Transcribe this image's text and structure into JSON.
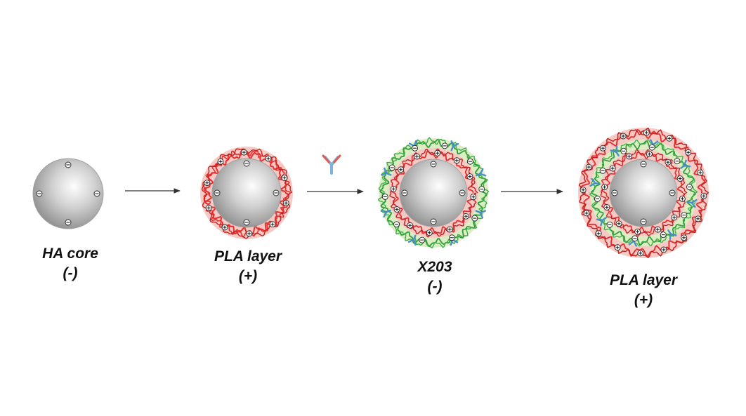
{
  "stages": [
    {
      "title": "HA core",
      "charge": "(-)"
    },
    {
      "title": "PLA layer",
      "charge": "(+)"
    },
    {
      "title": "X203",
      "charge": "(-)"
    },
    {
      "title": "PLA layer",
      "charge": "(+)"
    }
  ],
  "symbols": {
    "negative": "−",
    "positive": "+"
  },
  "colors": {
    "core": "#b8b8b8",
    "pla": "#e53030",
    "pla_bg": "#f6c9c4",
    "x203": "#2e9a3a",
    "x203_bg": "#dcedc4",
    "antibody_blue": "#4a8fc8",
    "antibody_red": "#e05a50"
  }
}
